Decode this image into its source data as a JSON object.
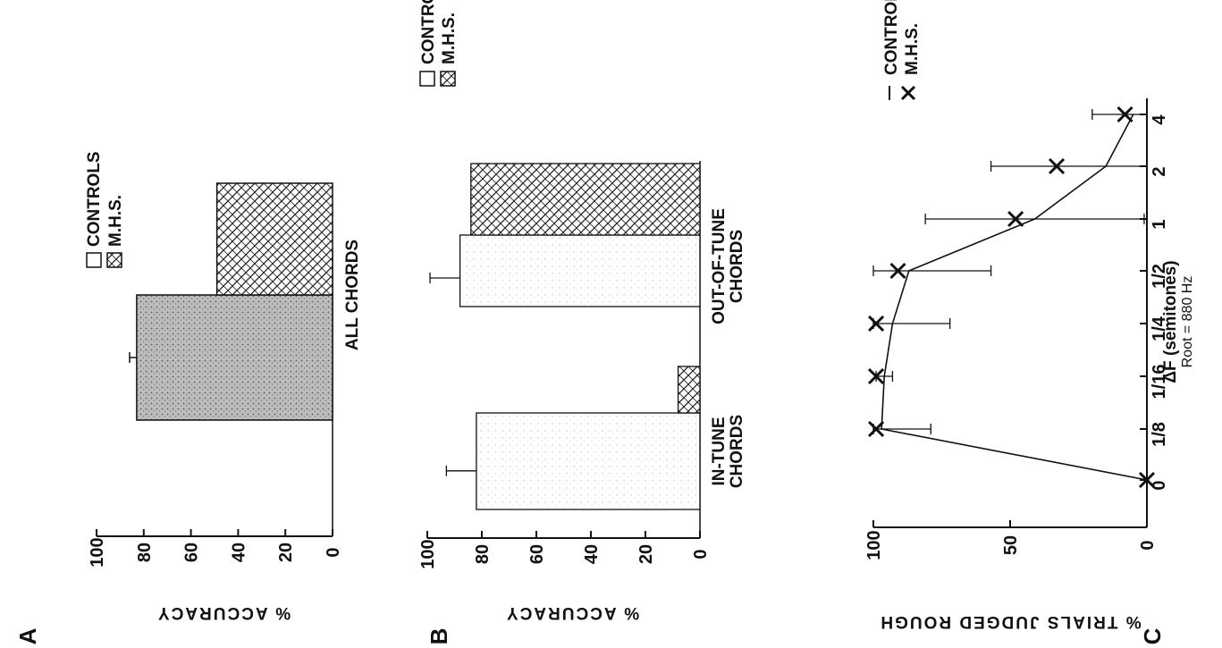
{
  "chart_data": [
    {
      "panel": "A",
      "type": "bar",
      "ylabel": "% ACCURACY",
      "ylim": [
        0,
        100
      ],
      "yticks": [
        "0",
        "20",
        "40",
        "60",
        "80",
        "100"
      ],
      "categories": [
        "ALL CHORDS"
      ],
      "series": [
        {
          "name": "CONTROLS",
          "values": [
            83
          ],
          "error": [
            3
          ]
        },
        {
          "name": "M.H.S.",
          "values": [
            49
          ]
        }
      ],
      "colors": {
        "controls_fill": "#d0d0d0",
        "mhs_fill": "#ffffff",
        "mhs_hatch": "#222222"
      }
    },
    {
      "panel": "B",
      "type": "bar",
      "ylabel": "% ACCURACY",
      "ylim": [
        0,
        100
      ],
      "yticks": [
        "0",
        "20",
        "40",
        "60",
        "80",
        "100"
      ],
      "categories": [
        "IN-TUNE CHORDS",
        "OUT-OF-TUNE CHORDS"
      ],
      "series": [
        {
          "name": "CONTROLS",
          "values": [
            82,
            88
          ],
          "error": [
            11,
            11
          ]
        },
        {
          "name": "M.H.S.",
          "values": [
            8,
            84
          ]
        }
      ],
      "colors": {
        "controls_fill": "#e6e6e6",
        "mhs_fill": "#ffffff",
        "mhs_hatch": "#222222"
      }
    },
    {
      "panel": "C",
      "type": "line",
      "ylabel": "% TRIALS JUDGED ROUGH",
      "xlabel": "ΔF (semitones)",
      "x_sublabel": "Root = 880 Hz",
      "ylim": [
        0,
        100
      ],
      "yticks": [
        "0",
        "50",
        "100"
      ],
      "categories": [
        "0",
        "1/8",
        "1/16",
        "1/4",
        "1/2",
        "1",
        "2",
        "4"
      ],
      "series": [
        {
          "name": "CONTROLS",
          "marker": "line",
          "values": [
            0,
            97,
            96,
            93,
            87,
            41,
            15,
            5
          ],
          "error": [
            0,
            18,
            3,
            21,
            30,
            40,
            42,
            15
          ]
        },
        {
          "name": "M.H.S.",
          "marker": "x",
          "values": [
            0,
            99,
            99,
            99,
            91,
            48,
            33,
            8
          ]
        }
      ]
    }
  ]
}
